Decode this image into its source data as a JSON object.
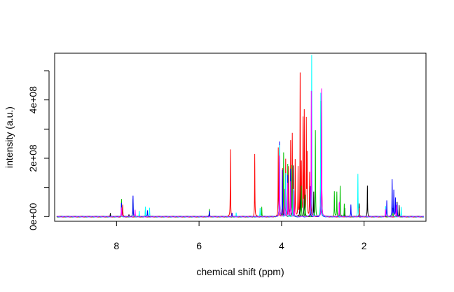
{
  "chart_data": {
    "type": "line",
    "title": "",
    "xlabel": "chemical shift (ppm)",
    "ylabel": "intensity (a.u.)",
    "x_reversed": true,
    "xlim": [
      9.5,
      0.5
    ],
    "ylim": [
      -16000000,
      560000000
    ],
    "x_ticks": [
      8,
      6,
      4,
      2
    ],
    "x_tick_labels": [
      "8",
      "6",
      "4",
      "2"
    ],
    "y_ticks": [
      0,
      200000000,
      400000000
    ],
    "y_tick_labels": [
      "0e+00",
      "2e+08",
      "4e+08"
    ],
    "y_minor_ticks": [
      100000000,
      300000000,
      500000000
    ],
    "grid": false,
    "legend": "none",
    "series": [
      {
        "color": "#000000",
        "peaks": [
          [
            8.15,
            12000000
          ],
          [
            7.7,
            6000000
          ],
          [
            5.75,
            22000000
          ],
          [
            4.05,
            210000000
          ],
          [
            3.98,
            150000000
          ],
          [
            3.9,
            130000000
          ],
          [
            3.78,
            145000000
          ],
          [
            3.72,
            175000000
          ],
          [
            3.55,
            150000000
          ],
          [
            3.45,
            125000000
          ],
          [
            3.28,
            110000000
          ],
          [
            3.22,
            85000000
          ],
          [
            3.03,
            360000000
          ],
          [
            2.6,
            45000000
          ],
          [
            2.47,
            30000000
          ],
          [
            2.12,
            45000000
          ],
          [
            1.92,
            105000000
          ],
          [
            1.48,
            25000000
          ],
          [
            1.2,
            50000000
          ],
          [
            1.15,
            40000000
          ]
        ]
      },
      {
        "color": "#ff0000",
        "peaks": [
          [
            7.85,
            40000000
          ],
          [
            5.24,
            230000000
          ],
          [
            4.65,
            215000000
          ],
          [
            4.08,
            235000000
          ],
          [
            3.97,
            165000000
          ],
          [
            3.9,
            195000000
          ],
          [
            3.83,
            170000000
          ],
          [
            3.78,
            255000000
          ],
          [
            3.74,
            280000000
          ],
          [
            3.67,
            195000000
          ],
          [
            3.6,
            165000000
          ],
          [
            3.55,
            485000000
          ],
          [
            3.52,
            175000000
          ],
          [
            3.48,
            330000000
          ],
          [
            3.45,
            355000000
          ],
          [
            3.4,
            325000000
          ],
          [
            3.38,
            205000000
          ],
          [
            3.32,
            150000000
          ],
          [
            3.28,
            120000000
          ],
          [
            3.03,
            395000000
          ],
          [
            2.12,
            30000000
          ]
        ]
      },
      {
        "color": "#00c000",
        "peaks": [
          [
            7.88,
            62000000
          ],
          [
            7.6,
            60000000
          ],
          [
            7.3,
            25000000
          ],
          [
            5.75,
            25000000
          ],
          [
            4.48,
            35000000
          ],
          [
            4.05,
            180000000
          ],
          [
            3.95,
            220000000
          ],
          [
            3.85,
            180000000
          ],
          [
            3.75,
            175000000
          ],
          [
            3.52,
            105000000
          ],
          [
            3.43,
            75000000
          ],
          [
            3.18,
            295000000
          ],
          [
            3.05,
            395000000
          ],
          [
            2.72,
            85000000
          ],
          [
            2.66,
            85000000
          ],
          [
            2.58,
            105000000
          ],
          [
            2.48,
            45000000
          ],
          [
            1.3,
            30000000
          ]
        ]
      },
      {
        "color": "#0000ff",
        "peaks": [
          [
            7.88,
            48000000
          ],
          [
            7.6,
            70000000
          ],
          [
            7.25,
            20000000
          ],
          [
            5.75,
            18000000
          ],
          [
            5.2,
            12000000
          ],
          [
            4.05,
            255000000
          ],
          [
            3.98,
            160000000
          ],
          [
            3.9,
            145000000
          ],
          [
            3.85,
            140000000
          ],
          [
            3.78,
            165000000
          ],
          [
            3.3,
            105000000
          ],
          [
            3.05,
            220000000
          ],
          [
            2.32,
            40000000
          ],
          [
            1.45,
            55000000
          ],
          [
            1.32,
            125000000
          ],
          [
            1.28,
            90000000
          ],
          [
            1.24,
            65000000
          ],
          [
            1.2,
            45000000
          ]
        ]
      },
      {
        "color": "#00ffff",
        "peaks": [
          [
            7.45,
            20000000
          ],
          [
            7.3,
            35000000
          ],
          [
            7.2,
            30000000
          ],
          [
            5.1,
            15000000
          ],
          [
            4.52,
            28000000
          ],
          [
            4.05,
            245000000
          ],
          [
            3.9,
            150000000
          ],
          [
            3.72,
            95000000
          ],
          [
            3.27,
            555000000
          ],
          [
            3.05,
            425000000
          ],
          [
            2.15,
            145000000
          ],
          [
            1.48,
            35000000
          ],
          [
            1.1,
            32000000
          ]
        ]
      },
      {
        "color": "#ff00ff",
        "peaks": [
          [
            7.88,
            30000000
          ],
          [
            7.55,
            22000000
          ],
          [
            4.05,
            210000000
          ],
          [
            3.92,
            95000000
          ],
          [
            3.85,
            115000000
          ],
          [
            3.78,
            120000000
          ],
          [
            3.7,
            90000000
          ],
          [
            3.28,
            430000000
          ],
          [
            3.03,
            440000000
          ],
          [
            2.6,
            50000000
          ],
          [
            1.48,
            25000000
          ],
          [
            1.22,
            40000000
          ]
        ]
      }
    ]
  }
}
